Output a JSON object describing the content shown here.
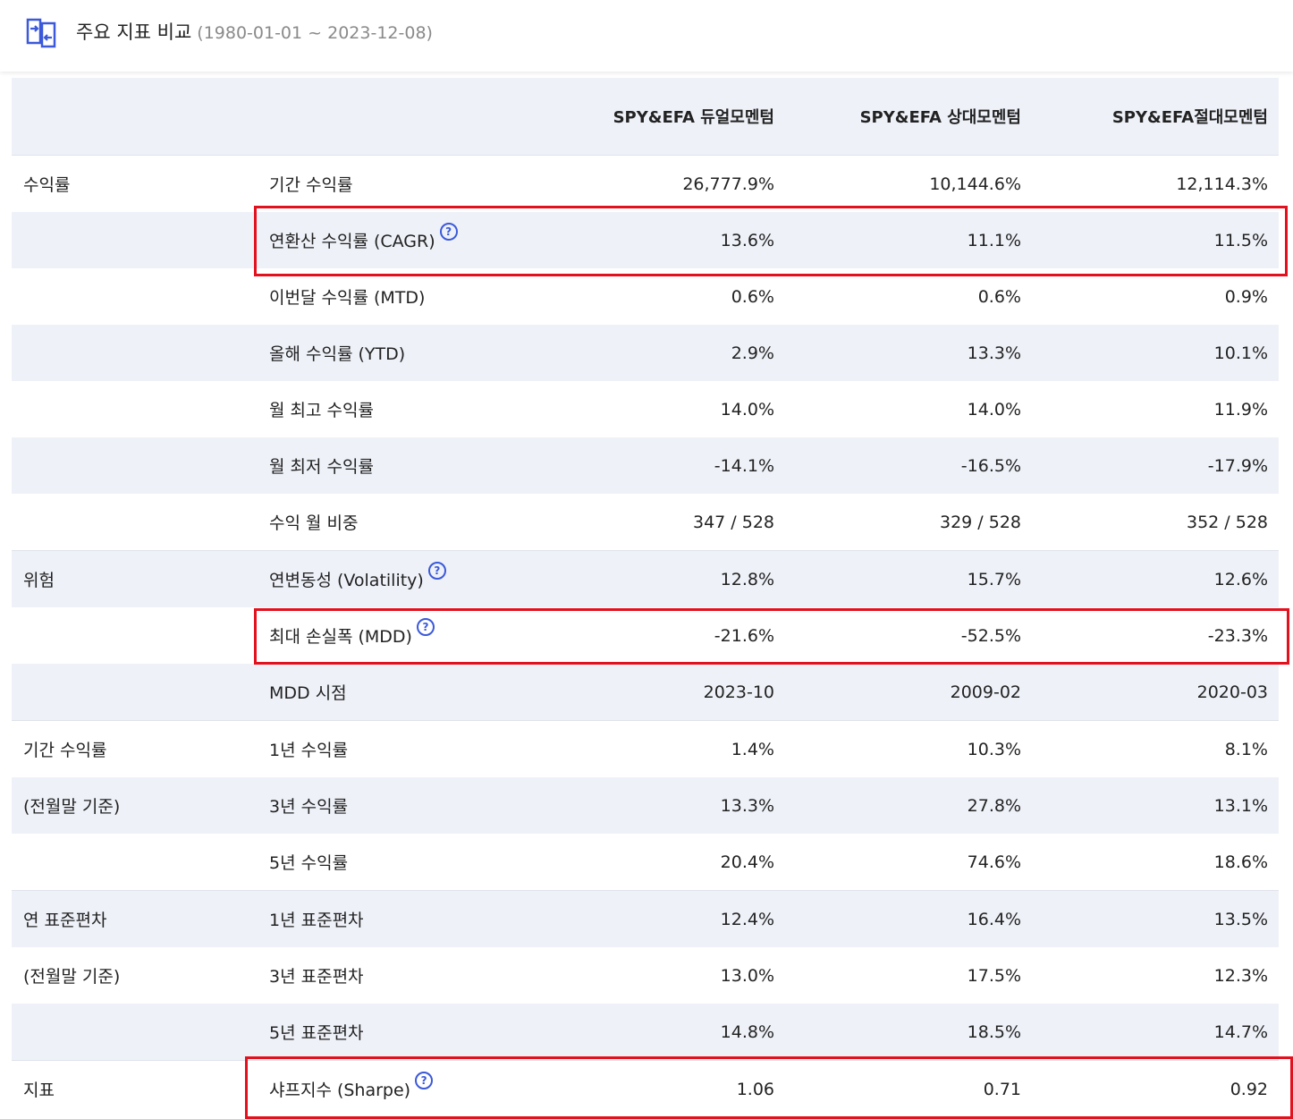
{
  "header": {
    "title": "주요 지표 비교",
    "range": "(1980-01-01 ~ 2023-12-08)",
    "icon": "compare-arrows-icon"
  },
  "columns": [
    "SPY&EFA 듀얼모멘텀",
    "SPY&EFA 상대모멘텀",
    "SPY&EFA절대모멘텀"
  ],
  "rows": [
    {
      "group": "수익률",
      "metric": "기간 수익률",
      "help": false,
      "values": [
        "26,777.9%",
        "10,144.6%",
        "12,114.3%"
      ]
    },
    {
      "group": "",
      "metric": "연환산 수익률 (CAGR)",
      "help": true,
      "values": [
        "13.6%",
        "11.1%",
        "11.5%"
      ]
    },
    {
      "group": "",
      "metric": "이번달 수익률 (MTD)",
      "help": false,
      "values": [
        "0.6%",
        "0.6%",
        "0.9%"
      ]
    },
    {
      "group": "",
      "metric": "올해 수익률 (YTD)",
      "help": false,
      "values": [
        "2.9%",
        "13.3%",
        "10.1%"
      ]
    },
    {
      "group": "",
      "metric": "월 최고 수익률",
      "help": false,
      "values": [
        "14.0%",
        "14.0%",
        "11.9%"
      ]
    },
    {
      "group": "",
      "metric": "월 최저 수익률",
      "help": false,
      "values": [
        "-14.1%",
        "-16.5%",
        "-17.9%"
      ]
    },
    {
      "group": "",
      "metric": "수익 월 비중",
      "help": false,
      "values": [
        "347 / 528",
        "329 / 528",
        "352 / 528"
      ]
    },
    {
      "group": "위험",
      "metric": "연변동성 (Volatility)",
      "help": true,
      "values": [
        "12.8%",
        "15.7%",
        "12.6%"
      ]
    },
    {
      "group": "",
      "metric": "최대 손실폭 (MDD)",
      "help": true,
      "values": [
        "-21.6%",
        "-52.5%",
        "-23.3%"
      ]
    },
    {
      "group": "",
      "metric": "MDD 시점",
      "help": false,
      "values": [
        "2023-10",
        "2009-02",
        "2020-03"
      ]
    },
    {
      "group": "기간 수익률",
      "metric": "1년 수익률",
      "help": false,
      "values": [
        "1.4%",
        "10.3%",
        "8.1%"
      ]
    },
    {
      "group": "(전월말 기준)",
      "metric": "3년 수익률",
      "help": false,
      "values": [
        "13.3%",
        "27.8%",
        "13.1%"
      ]
    },
    {
      "group": "",
      "metric": "5년 수익률",
      "help": false,
      "values": [
        "20.4%",
        "74.6%",
        "18.6%"
      ]
    },
    {
      "group": "연 표준편차",
      "metric": "1년 표준편차",
      "help": false,
      "values": [
        "12.4%",
        "16.4%",
        "13.5%"
      ]
    },
    {
      "group": "(전월말 기준)",
      "metric": "3년 표준편차",
      "help": false,
      "values": [
        "13.0%",
        "17.5%",
        "12.3%"
      ]
    },
    {
      "group": "",
      "metric": "5년 표준편차",
      "help": false,
      "values": [
        "14.8%",
        "18.5%",
        "14.7%"
      ]
    },
    {
      "group": "지표",
      "metric": "샤프지수 (Sharpe)",
      "help": true,
      "values": [
        "1.06",
        "0.71",
        "0.92"
      ]
    }
  ],
  "help_glyph": "?",
  "colors": {
    "accent": "#3b59d9",
    "highlight": "#e3101d",
    "row_alt": "#eef1f8"
  }
}
